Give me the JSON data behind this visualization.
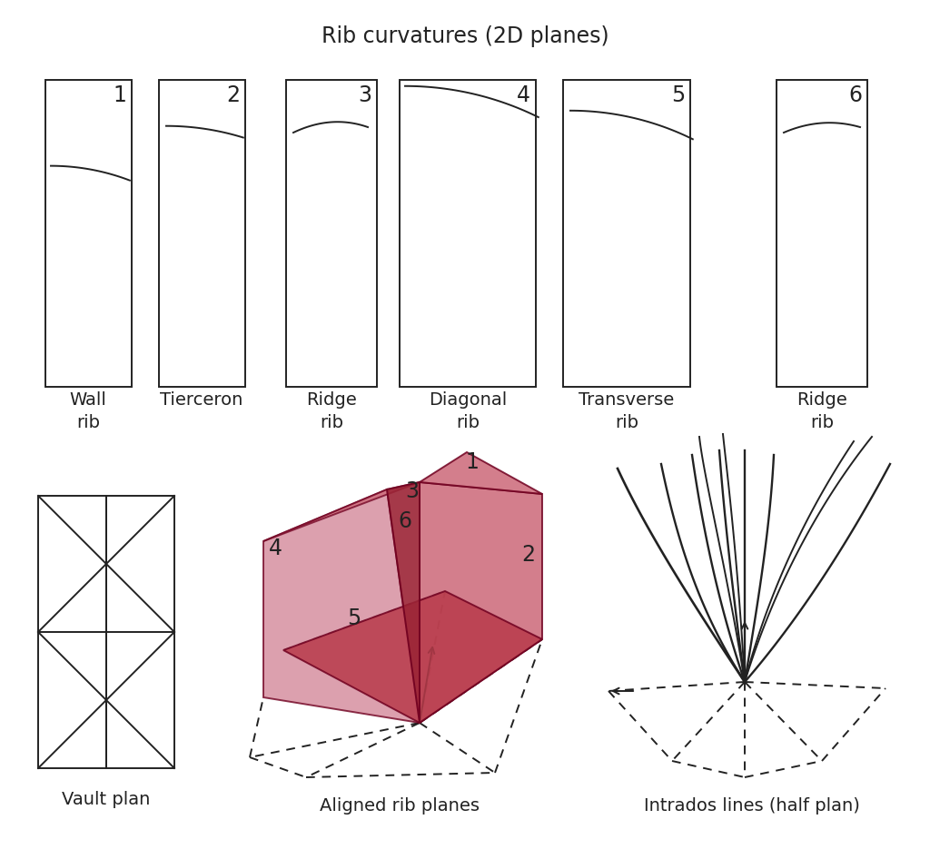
{
  "title": "Rib curvatures (2D planes)",
  "title_fontsize": 17,
  "bg_color": "#ffffff",
  "line_color": "#222222",
  "red_dark": "#9b2335",
  "red_mid": "#b83a4a",
  "red_light": "#cc6878",
  "red_lighter": "#d4899a",
  "labels_top": [
    "Wall\nrib",
    "Tierceron",
    "Ridge\nrib",
    "Diagonal\nrib",
    "Transverse\nrib",
    "Ridge\nrib"
  ],
  "numbers_top": [
    "1",
    "2",
    "3",
    "4",
    "5",
    "6"
  ],
  "labels_bottom": [
    "Vault plan",
    "Aligned rib planes",
    "Intrados lines (half plan)"
  ],
  "label_fontsize": 14,
  "number_fontsize": 17,
  "lw": 1.4
}
